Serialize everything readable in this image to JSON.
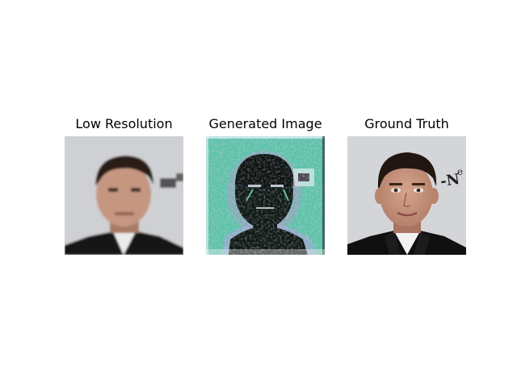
{
  "panels": [
    {
      "title": "Low Resolution"
    },
    {
      "title": "Generated Image"
    },
    {
      "title": "Ground Truth"
    }
  ],
  "colors": {
    "background_gray": "#d2d3d7",
    "generated_teal": "#5fc8a8",
    "generated_dark": "#0a1a12",
    "suit": "#111111",
    "skin": "#c79a86",
    "hair": "#2a1a12"
  }
}
